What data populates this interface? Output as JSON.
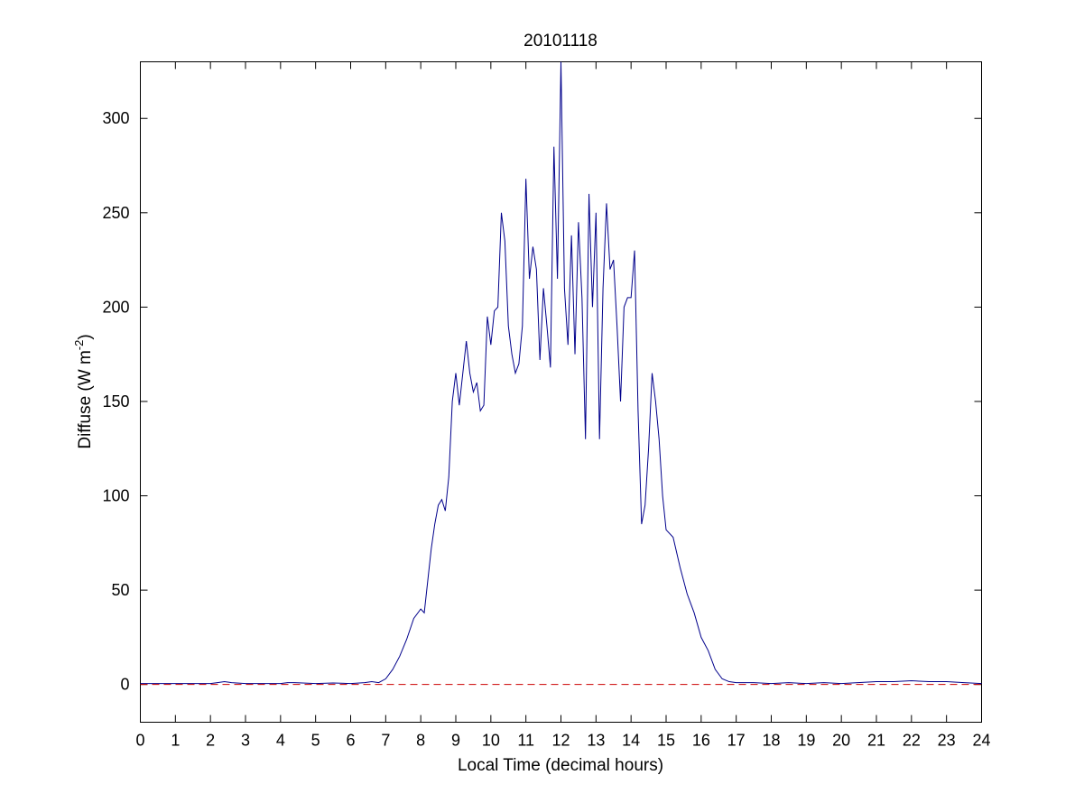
{
  "chart_data": {
    "type": "line",
    "title": "20101118",
    "xlabel": "Local Time (decimal hours)",
    "ylabel": "Diffuse (W m",
    "ylabel_exponent": "-2",
    "ylabel_close": ")",
    "xlim": [
      0,
      24
    ],
    "ylim": [
      -20,
      330
    ],
    "xticks": [
      0,
      1,
      2,
      3,
      4,
      5,
      6,
      7,
      8,
      9,
      10,
      11,
      12,
      13,
      14,
      15,
      16,
      17,
      18,
      19,
      20,
      21,
      22,
      23,
      24
    ],
    "yticks": [
      0,
      50,
      100,
      150,
      200,
      250,
      300
    ],
    "grid": false,
    "series": [
      {
        "color": "#00008b",
        "line_style": "solid",
        "x": [
          0,
          1,
          2,
          2.2,
          2.4,
          2.6,
          3,
          4,
          4.2,
          4.4,
          5,
          5.5,
          6,
          6.4,
          6.6,
          6.8,
          7,
          7.2,
          7.4,
          7.6,
          7.8,
          8,
          8.1,
          8.2,
          8.3,
          8.4,
          8.5,
          8.6,
          8.7,
          8.8,
          8.9,
          9,
          9.1,
          9.2,
          9.3,
          9.4,
          9.5,
          9.6,
          9.7,
          9.8,
          9.9,
          10,
          10.1,
          10.2,
          10.3,
          10.4,
          10.5,
          10.6,
          10.7,
          10.8,
          10.9,
          11,
          11.1,
          11.2,
          11.3,
          11.4,
          11.5,
          11.6,
          11.7,
          11.8,
          11.9,
          12,
          12.1,
          12.2,
          12.3,
          12.4,
          12.5,
          12.6,
          12.7,
          12.8,
          12.9,
          13,
          13.1,
          13.2,
          13.3,
          13.4,
          13.5,
          13.6,
          13.7,
          13.8,
          13.9,
          14,
          14.1,
          14.2,
          14.3,
          14.4,
          14.5,
          14.6,
          14.7,
          14.8,
          14.9,
          15,
          15.2,
          15.4,
          15.6,
          15.8,
          16,
          16.2,
          16.4,
          16.6,
          16.8,
          17,
          17.5,
          18,
          18.5,
          19,
          19.5,
          20,
          21,
          21.5,
          22,
          22.5,
          23,
          23.5,
          24
        ],
        "y": [
          0.5,
          0.5,
          0.5,
          1,
          1.5,
          1,
          0.5,
          0.5,
          1,
          1,
          0.5,
          0.8,
          0.5,
          1,
          1.5,
          1,
          3,
          8,
          15,
          24,
          35,
          40,
          38,
          55,
          72,
          85,
          95,
          98,
          92,
          110,
          150,
          165,
          148,
          165,
          182,
          165,
          155,
          160,
          145,
          148,
          195,
          180,
          198,
          200,
          250,
          235,
          190,
          175,
          165,
          170,
          190,
          268,
          215,
          232,
          220,
          172,
          210,
          190,
          168,
          285,
          215,
          330,
          210,
          180,
          238,
          175,
          245,
          205,
          130,
          260,
          200,
          250,
          130,
          210,
          255,
          220,
          225,
          190,
          150,
          200,
          205,
          205,
          230,
          145,
          85,
          95,
          125,
          165,
          150,
          130,
          100,
          82,
          78,
          62,
          48,
          38,
          25,
          18,
          8,
          3,
          1.5,
          1,
          1,
          0.5,
          1,
          0.5,
          1,
          0.5,
          1.5,
          1.5,
          2,
          1.5,
          1.5,
          1,
          0.5
        ]
      },
      {
        "color": "#cc0000",
        "line_style": "dashed",
        "x": [
          0,
          24
        ],
        "y": [
          0,
          0
        ]
      }
    ]
  }
}
